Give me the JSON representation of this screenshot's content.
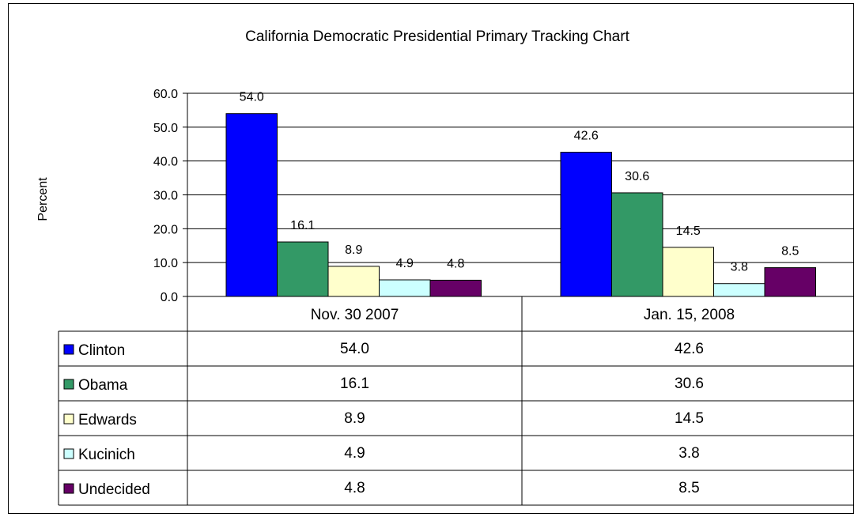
{
  "chart_data": {
    "type": "bar",
    "title": "California Democratic Presidential Primary Tracking Chart",
    "ylabel": "Percent",
    "xlabel": "",
    "ylim": [
      0,
      60
    ],
    "yticks": [
      "0.0",
      "10.0",
      "20.0",
      "30.0",
      "40.0",
      "50.0",
      "60.0"
    ],
    "grid": true,
    "legend": "data-table",
    "categories": [
      "Nov. 30 2007",
      "Jan. 15, 2008"
    ],
    "series": [
      {
        "name": "Clinton",
        "values": [
          54.0,
          42.6
        ],
        "labels": [
          "54.0",
          "42.6"
        ],
        "color": "#0000FF"
      },
      {
        "name": "Obama",
        "values": [
          16.1,
          30.6
        ],
        "labels": [
          "16.1",
          "30.6"
        ],
        "color": "#339966"
      },
      {
        "name": "Edwards",
        "values": [
          8.9,
          14.5
        ],
        "labels": [
          "8.9",
          "14.5"
        ],
        "color": "#FFFFCC"
      },
      {
        "name": "Kucinich",
        "values": [
          4.9,
          3.8
        ],
        "labels": [
          "4.9",
          "3.8"
        ],
        "color": "#CCFFFF"
      },
      {
        "name": "Undecided",
        "values": [
          4.8,
          8.5
        ],
        "labels": [
          "4.8",
          "8.5"
        ],
        "color": "#660066"
      }
    ]
  }
}
